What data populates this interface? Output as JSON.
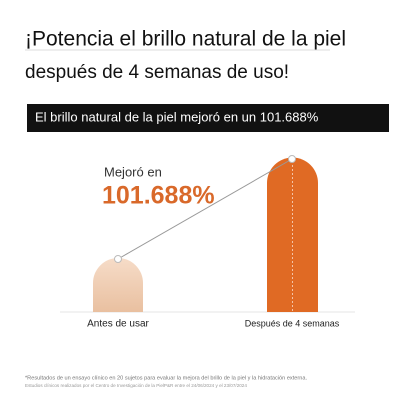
{
  "header": {
    "title_line1": "¡Potencia el brillo natural de la piel",
    "title_line2": "después de 4 semanas de uso!"
  },
  "banner": {
    "text": "El brillo natural de la piel mejoró en un 101.688%"
  },
  "chart": {
    "improvement_label": "Mejoró en",
    "improvement_value": "101.688%",
    "labels": [
      "Antes de usar",
      "Después de 4 semanas"
    ]
  },
  "footnotes": [
    "*Resultados de un ensayo clínico en 20 sujetos para evaluar la mejora del brillo de la piel y la hidratación externa.",
    "Estudios clínicos realizados por el Centro de Investigación de la PielP&R entre el 24/06/2024 y el 23/07/2024"
  ]
}
